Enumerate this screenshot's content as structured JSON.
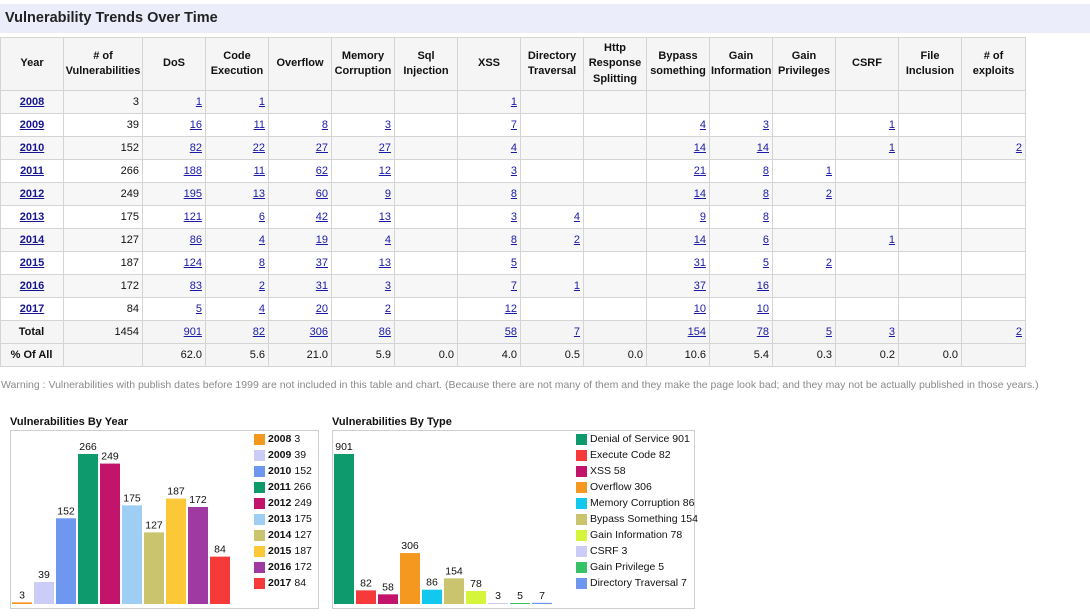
{
  "page": {
    "title": "Vulnerability Trends Over Time",
    "warning": "Warning : Vulnerabilities with publish dates before 1999 are not included in this table and chart. (Because there are not many of them and they make the page look bad; and they may not be actually published in those years.)"
  },
  "table": {
    "headers": [
      "Year",
      "# of Vulnerabilities",
      "DoS",
      "Code Execution",
      "Overflow",
      "Memory Corruption",
      "Sql Injection",
      "XSS",
      "Directory Traversal",
      "Http Response Splitting",
      "Bypass something",
      "Gain Information",
      "Gain Privileges",
      "CSRF",
      "File Inclusion",
      "# of exploits"
    ],
    "rows": [
      [
        "2008",
        "3",
        "1",
        "1",
        "",
        "",
        "",
        "1",
        "",
        "",
        "",
        "",
        "",
        "",
        "",
        ""
      ],
      [
        "2009",
        "39",
        "16",
        "11",
        "8",
        "3",
        "",
        "7",
        "",
        "",
        "4",
        "3",
        "",
        "1",
        "",
        ""
      ],
      [
        "2010",
        "152",
        "82",
        "22",
        "27",
        "27",
        "",
        "4",
        "",
        "",
        "14",
        "14",
        "",
        "1",
        "",
        "2"
      ],
      [
        "2011",
        "266",
        "188",
        "11",
        "62",
        "12",
        "",
        "3",
        "",
        "",
        "21",
        "8",
        "1",
        "",
        "",
        ""
      ],
      [
        "2012",
        "249",
        "195",
        "13",
        "60",
        "9",
        "",
        "8",
        "",
        "",
        "14",
        "8",
        "2",
        "",
        "",
        ""
      ],
      [
        "2013",
        "175",
        "121",
        "6",
        "42",
        "13",
        "",
        "3",
        "4",
        "",
        "9",
        "8",
        "",
        "",
        "",
        ""
      ],
      [
        "2014",
        "127",
        "86",
        "4",
        "19",
        "4",
        "",
        "8",
        "2",
        "",
        "14",
        "6",
        "",
        "1",
        "",
        ""
      ],
      [
        "2015",
        "187",
        "124",
        "8",
        "37",
        "13",
        "",
        "5",
        "",
        "",
        "31",
        "5",
        "2",
        "",
        "",
        ""
      ],
      [
        "2016",
        "172",
        "83",
        "2",
        "31",
        "3",
        "",
        "7",
        "1",
        "",
        "37",
        "16",
        "",
        "",
        "",
        ""
      ],
      [
        "2017",
        "84",
        "5",
        "4",
        "20",
        "2",
        "",
        "12",
        "",
        "",
        "10",
        "10",
        "",
        "",
        "",
        ""
      ]
    ],
    "total": [
      "Total",
      "1454",
      "901",
      "82",
      "306",
      "86",
      "",
      "58",
      "7",
      "",
      "154",
      "78",
      "5",
      "3",
      "",
      "2"
    ],
    "percent": [
      "% Of All",
      "",
      "62.0",
      "5.6",
      "21.0",
      "5.9",
      "0.0",
      "4.0",
      "0.5",
      "0.0",
      "10.6",
      "5.4",
      "0.3",
      "0.2",
      "0.0",
      ""
    ]
  },
  "chart_data": [
    {
      "type": "bar",
      "title": "Vulnerabilities By Year",
      "categories": [
        "2008",
        "2009",
        "2010",
        "2011",
        "2012",
        "2013",
        "2014",
        "2015",
        "2016",
        "2017"
      ],
      "values": [
        3,
        39,
        152,
        266,
        249,
        175,
        127,
        187,
        172,
        84
      ],
      "colors": [
        "#f4981f",
        "#cccdf6",
        "#6e97ef",
        "#0f9a6e",
        "#c3146b",
        "#9ecef4",
        "#c9c46d",
        "#fdc837",
        "#9e3aa1",
        "#f63a3a"
      ],
      "legend": [
        {
          "bold": "2008",
          "text": "3"
        },
        {
          "bold": "2009",
          "text": "39"
        },
        {
          "bold": "2010",
          "text": "152"
        },
        {
          "bold": "2011",
          "text": "266"
        },
        {
          "bold": "2012",
          "text": "249"
        },
        {
          "bold": "2013",
          "text": "175"
        },
        {
          "bold": "2014",
          "text": "127"
        },
        {
          "bold": "2015",
          "text": "187"
        },
        {
          "bold": "2016",
          "text": "172"
        },
        {
          "bold": "2017",
          "text": "84"
        }
      ],
      "ylim": [
        0,
        266
      ]
    },
    {
      "type": "bar",
      "title": "Vulnerabilities By Type",
      "categories": [
        "Denial of Service",
        "Execute Code",
        "XSS",
        "Overflow",
        "Memory Corruption",
        "Bypass Something",
        "Gain Information",
        "CSRF",
        "Gain Privilege",
        "Directory Traversal"
      ],
      "values": [
        901,
        82,
        58,
        306,
        86,
        154,
        78,
        3,
        5,
        7
      ],
      "colors": [
        "#0f9a6e",
        "#f63a3a",
        "#c3146b",
        "#f4981f",
        "#12c8ef",
        "#c9c46d",
        "#d4f53a",
        "#cccdf6",
        "#37c267",
        "#6e97ef"
      ],
      "legend": [
        {
          "bold": "",
          "text": "Denial of Service 901"
        },
        {
          "bold": "",
          "text": "Execute Code 82"
        },
        {
          "bold": "",
          "text": "XSS 58"
        },
        {
          "bold": "",
          "text": "Overflow 306"
        },
        {
          "bold": "",
          "text": "Memory Corruption 86"
        },
        {
          "bold": "",
          "text": "Bypass Something 154"
        },
        {
          "bold": "",
          "text": "Gain Information 78"
        },
        {
          "bold": "",
          "text": "CSRF 3"
        },
        {
          "bold": "",
          "text": "Gain Privilege 5"
        },
        {
          "bold": "",
          "text": "Directory Traversal 7"
        }
      ],
      "ylim": [
        0,
        901
      ]
    }
  ]
}
